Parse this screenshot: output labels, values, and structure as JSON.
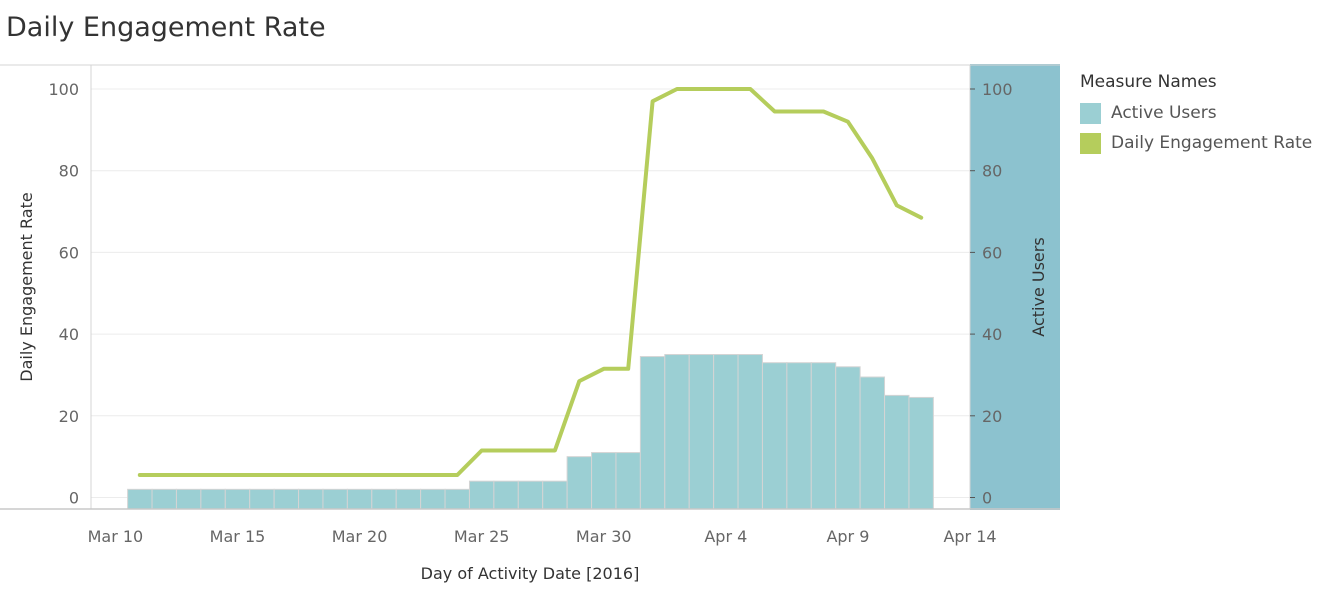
{
  "chart_data": {
    "type": "bar+line",
    "title": "Daily Engagement Rate",
    "xlabel": "Day of Activity Date [2016]",
    "ylabel_left": "Daily Engagement Rate",
    "ylabel_right": "Active Users",
    "x_ticks": [
      "Mar 10",
      "Mar 15",
      "Mar 20",
      "Mar 25",
      "Mar 30",
      "Apr 4",
      "Apr 9",
      "Apr 14"
    ],
    "y_ticks_left": [
      "0",
      "20",
      "40",
      "60",
      "80",
      "100"
    ],
    "y_ticks_right": [
      "0",
      "20",
      "40",
      "60",
      "80",
      "100"
    ],
    "ylim_left": [
      0,
      100
    ],
    "ylim_right": [
      0,
      100
    ],
    "xlim": [
      "2016-03-09",
      "2016-04-14"
    ],
    "grid": true,
    "legend": {
      "title": "Measure Names",
      "position": "right",
      "items": [
        {
          "label": "Active Users",
          "color": "#9bcfd3"
        },
        {
          "label": "Daily Engagement Rate",
          "color": "#b5cd5c"
        }
      ]
    },
    "dates": [
      "2016-03-11",
      "2016-03-12",
      "2016-03-13",
      "2016-03-14",
      "2016-03-15",
      "2016-03-16",
      "2016-03-17",
      "2016-03-18",
      "2016-03-19",
      "2016-03-20",
      "2016-03-21",
      "2016-03-22",
      "2016-03-23",
      "2016-03-24",
      "2016-03-25",
      "2016-03-26",
      "2016-03-27",
      "2016-03-28",
      "2016-03-29",
      "2016-03-30",
      "2016-03-31",
      "2016-04-01",
      "2016-04-02",
      "2016-04-03",
      "2016-04-04",
      "2016-04-05",
      "2016-04-06",
      "2016-04-07",
      "2016-04-08",
      "2016-04-09",
      "2016-04-10",
      "2016-04-11",
      "2016-04-12"
    ],
    "series": [
      {
        "name": "Active Users",
        "type": "bar",
        "color": "#9bcfd3",
        "values": [
          2,
          2,
          2,
          2,
          2,
          2,
          2,
          2,
          2,
          2,
          2,
          2,
          2,
          2,
          4,
          4,
          4,
          4,
          10,
          11,
          11,
          34.5,
          35,
          35,
          35,
          35,
          33,
          33,
          33,
          32,
          29.5,
          25,
          24.5
        ]
      },
      {
        "name": "Daily Engagement Rate",
        "type": "line",
        "color": "#b5cd5c",
        "values": [
          5.5,
          5.5,
          5.5,
          5.5,
          5.5,
          5.5,
          5.5,
          5.5,
          5.5,
          5.5,
          5.5,
          5.5,
          5.5,
          5.5,
          11.5,
          11.5,
          11.5,
          11.5,
          28.5,
          31.5,
          31.5,
          97,
          100,
          100,
          100,
          100,
          94.5,
          94.5,
          94.5,
          92,
          83,
          71.5,
          68.5
        ]
      }
    ]
  }
}
